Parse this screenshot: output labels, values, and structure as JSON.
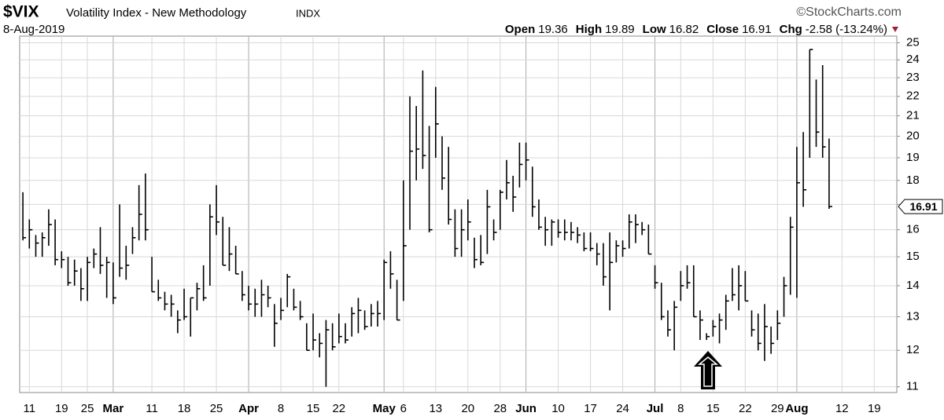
{
  "chart_data": {
    "type": "hlc",
    "title": "$VIX",
    "subtitle": "Volatility Index - New Methodology",
    "exchange": "INDX",
    "credit": "©StockCharts.com",
    "date": "8-Aug-2019",
    "quote": [
      {
        "label": "Open",
        "value": 19.36
      },
      {
        "label": "High",
        "value": 19.89
      },
      {
        "label": "Low",
        "value": 16.82
      },
      {
        "label": "Close",
        "value": 16.91
      }
    ],
    "change_label": "Chg",
    "change": "-2.58 (-13.24%)",
    "color": "#000000",
    "log": true,
    "grid": true,
    "ylim": [
      10.85,
      25.4
    ],
    "yticks": [
      11,
      12,
      13,
      14,
      15,
      16,
      17,
      18,
      19,
      20,
      21,
      22,
      23,
      24,
      25
    ],
    "categories": [
      null,
      "11",
      null,
      null,
      null,
      null,
      "19",
      null,
      null,
      null,
      "25",
      null,
      null,
      null,
      "Mar",
      null,
      null,
      null,
      null,
      null,
      "11",
      null,
      null,
      null,
      null,
      "18",
      null,
      null,
      null,
      null,
      "25",
      null,
      null,
      null,
      null,
      "Apr",
      null,
      null,
      null,
      null,
      "8",
      null,
      null,
      null,
      null,
      "15",
      null,
      null,
      null,
      "22",
      null,
      null,
      null,
      null,
      null,
      null,
      "May",
      null,
      null,
      "6",
      null,
      null,
      null,
      null,
      "13",
      null,
      null,
      null,
      null,
      "20",
      null,
      null,
      null,
      null,
      "28",
      null,
      null,
      null,
      "Jun",
      null,
      null,
      null,
      null,
      "10",
      null,
      null,
      null,
      null,
      "17",
      null,
      null,
      null,
      null,
      "24",
      null,
      null,
      null,
      null,
      "Jul",
      null,
      null,
      null,
      "8",
      null,
      null,
      null,
      null,
      "15",
      null,
      null,
      null,
      null,
      "22",
      null,
      null,
      null,
      null,
      "29",
      null,
      null,
      "Aug",
      null,
      null,
      null,
      null,
      null,
      null,
      "12",
      null,
      null,
      null,
      null,
      "19",
      null,
      null,
      null
    ],
    "high": [
      17.5,
      16.4,
      15.8,
      15.9,
      16.8,
      16.4,
      15.2,
      15.0,
      14.9,
      14.6,
      15.0,
      15.3,
      16.1,
      15.0,
      14.8,
      17.0,
      15.4,
      16.1,
      17.8,
      18.3,
      15.0,
      14.2,
      13.8,
      13.7,
      13.2,
      13.9,
      13.6,
      14.1,
      14.7,
      17.0,
      17.8,
      16.5,
      16.1,
      15.4,
      14.5,
      14.0,
      13.9,
      14.2,
      14.0,
      13.4,
      13.6,
      14.4,
      13.9,
      13.5,
      12.8,
      13.1,
      12.5,
      12.9,
      12.8,
      13.1,
      12.8,
      13.3,
      13.6,
      13.2,
      13.4,
      13.5,
      14.9,
      15.2,
      14.2,
      18.0,
      22.0,
      21.5,
      23.4,
      20.5,
      22.5,
      20.0,
      19.5,
      16.8,
      16.8,
      17.2,
      15.7,
      15.8,
      17.6,
      16.4,
      17.6,
      18.9,
      18.2,
      19.7,
      19.7,
      18.6,
      17.2,
      16.5,
      16.4,
      16.4,
      16.4,
      16.3,
      16.1,
      15.9,
      15.9,
      15.5,
      15.5,
      15.9,
      15.6,
      15.6,
      16.6,
      16.6,
      16.3,
      16.2,
      14.7,
      14.1,
      13.2,
      13.5,
      14.5,
      14.7,
      14.7,
      13.2,
      12.5,
      12.9,
      13.1,
      13.7,
      14.6,
      14.7,
      14.5,
      13.2,
      13.1,
      13.4,
      12.7,
      13.2,
      14.3,
      16.5,
      19.5,
      20.2,
      24.6,
      22.9,
      23.7,
      19.89,
      null,
      null,
      null,
      null,
      null,
      null,
      null,
      null,
      null,
      null
    ],
    "low": [
      15.6,
      15.3,
      15.0,
      15.0,
      15.4,
      14.7,
      14.6,
      14.0,
      14.0,
      13.5,
      13.5,
      14.6,
      14.4,
      13.6,
      13.4,
      14.3,
      14.2,
      15.1,
      15.6,
      15.6,
      13.8,
      13.5,
      13.2,
      13.0,
      12.5,
      12.9,
      12.4,
      13.2,
      13.5,
      14.0,
      15.8,
      14.7,
      14.5,
      14.4,
      13.5,
      13.2,
      13.0,
      13.0,
      13.3,
      12.1,
      12.9,
      13.3,
      13.2,
      12.9,
      12.0,
      12.0,
      11.8,
      11.0,
      12.0,
      12.2,
      12.2,
      12.4,
      12.5,
      12.6,
      12.7,
      12.7,
      12.9,
      13.9,
      12.9,
      13.5,
      16.0,
      18.0,
      18.5,
      15.9,
      19.0,
      17.6,
      16.2,
      15.0,
      15.0,
      15.6,
      14.6,
      14.7,
      15.1,
      15.6,
      16.0,
      17.2,
      16.7,
      17.7,
      18.0,
      16.5,
      16.0,
      15.4,
      15.4,
      15.7,
      15.6,
      15.6,
      15.5,
      15.2,
      15.2,
      14.7,
      14.0,
      13.2,
      14.8,
      15.0,
      15.3,
      15.5,
      15.8,
      15.1,
      13.9,
      12.9,
      12.4,
      12.0,
      13.5,
      13.9,
      13.0,
      12.3,
      12.3,
      12.4,
      12.2,
      12.6,
      13.5,
      13.2,
      13.5,
      12.4,
      12.0,
      11.7,
      11.9,
      12.3,
      13.0,
      13.7,
      13.6,
      16.9,
      19.0,
      19.5,
      19.0,
      16.82,
      null,
      null,
      null,
      null,
      null,
      null,
      null,
      null,
      null,
      null
    ],
    "close": [
      15.7,
      16.0,
      15.5,
      15.7,
      16.2,
      14.9,
      14.9,
      14.1,
      14.5,
      13.9,
      14.8,
      15.1,
      14.7,
      14.8,
      13.6,
      14.6,
      14.7,
      15.7,
      16.6,
      16.0,
      13.8,
      13.6,
      13.4,
      13.4,
      12.9,
      13.0,
      13.6,
      13.9,
      13.6,
      16.5,
      16.3,
      14.7,
      15.1,
      14.4,
      13.7,
      13.4,
      13.4,
      13.7,
      13.6,
      12.8,
      13.2,
      14.3,
      13.3,
      13.0,
      12.0,
      12.3,
      12.2,
      12.6,
      12.1,
      12.4,
      12.3,
      13.1,
      13.2,
      12.7,
      13.1,
      13.1,
      14.8,
      14.4,
      12.9,
      15.4,
      19.3,
      19.4,
      19.1,
      16.0,
      20.6,
      18.1,
      16.4,
      15.3,
      16.0,
      16.3,
      14.9,
      14.8,
      16.9,
      15.9,
      17.5,
      17.9,
      17.3,
      18.7,
      18.9,
      16.9,
      16.1,
      16.0,
      16.3,
      15.9,
      15.9,
      15.9,
      15.8,
      15.3,
      15.3,
      15.1,
      14.3,
      14.8,
      15.4,
      15.3,
      16.3,
      16.2,
      16.0,
      15.1,
      14.1,
      13.0,
      12.6,
      13.3,
      14.0,
      14.1,
      13.0,
      12.9,
      12.4,
      12.7,
      12.9,
      13.5,
      13.7,
      14.0,
      13.5,
      12.6,
      12.2,
      12.7,
      12.2,
      12.8,
      14.0,
      16.1,
      17.9,
      17.6,
      24.6,
      20.2,
      19.5,
      16.91,
      null,
      null,
      null,
      null,
      null,
      null,
      null,
      null,
      null,
      null
    ]
  }
}
